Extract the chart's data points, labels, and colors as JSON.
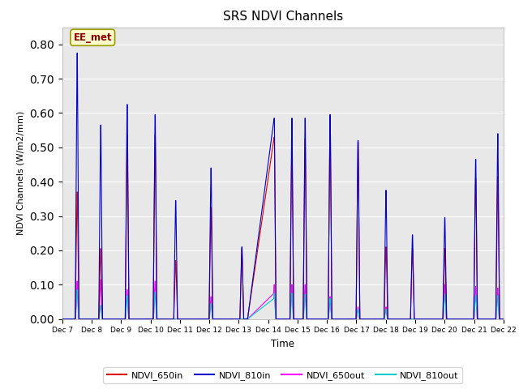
{
  "title": "SRS NDVI Channels",
  "ylabel": "NDVI Channels (W/m2/mm)",
  "xlabel": "Time",
  "ylim": [
    0.0,
    0.85
  ],
  "yticks": [
    0.0,
    0.1,
    0.2,
    0.3,
    0.4,
    0.5,
    0.6,
    0.7,
    0.8
  ],
  "xtick_labels": [
    "Dec 7",
    "Dec 8",
    "Dec 9",
    "Dec 10",
    "Dec 11",
    "Dec 12",
    "Dec 13",
    "Dec 14",
    "Dec 15",
    "Dec 16",
    "Dec 17",
    "Dec 18",
    "Dec 19",
    "Dec 20",
    "Dec 21",
    "Dec 22"
  ],
  "colors": {
    "NDVI_650in": "#dd0000",
    "NDVI_810in": "#0000cc",
    "NDVI_650out": "#ff00ff",
    "NDVI_810out": "#00cccc"
  },
  "background_color": "#e8e8e8",
  "annotation_text": "EE_met",
  "annotation_box_color": "#ffffcc",
  "annotation_box_edge": "#999900"
}
